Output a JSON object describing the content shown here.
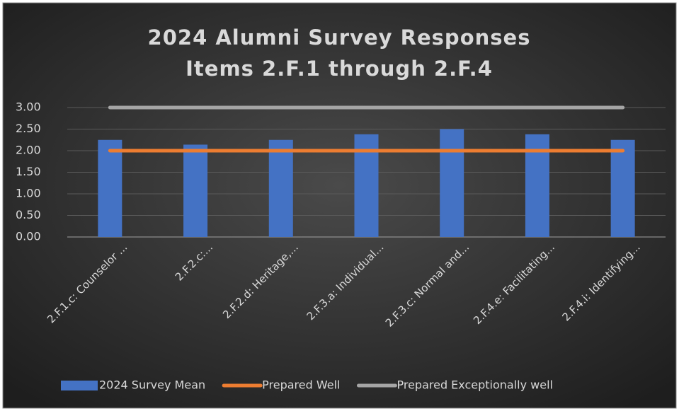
{
  "chart_data": {
    "type": "bar",
    "title": [
      "2024 Alumni Survey Responses",
      "Items 2.F.1 through 2.F.4"
    ],
    "categories": [
      "2.F.1.c: Counselor ...",
      "2.F.2.c:...",
      "2.F.2.d: Heritage,...",
      "2.F.3.a: Individual...",
      "2.F.3.c: Normal and...",
      "2.F.4.e: Facilitating...",
      "2.F.4.i: Identifying..."
    ],
    "series": [
      {
        "name": "2024 Survey Mean",
        "type": "bar",
        "color": "#4472c4",
        "values": [
          2.25,
          2.14,
          2.25,
          2.38,
          2.5,
          2.38,
          2.25
        ]
      },
      {
        "name": "Prepared Well",
        "type": "line",
        "color": "#ed7d31",
        "values": [
          2,
          2,
          2,
          2,
          2,
          2,
          2
        ]
      },
      {
        "name": "Prepared Exceptionally well",
        "type": "line",
        "color": "#a5a5a5",
        "values": [
          3,
          3,
          3,
          3,
          3,
          3,
          3
        ]
      }
    ],
    "ylim": [
      0,
      3
    ],
    "yticks": [
      {
        "value": 0,
        "label": "0.00"
      },
      {
        "value": 0.5,
        "label": "0.50"
      },
      {
        "value": 1,
        "label": "1.00"
      },
      {
        "value": 1.5,
        "label": "1.50"
      },
      {
        "value": 2,
        "label": "2.00"
      },
      {
        "value": 2.5,
        "label": "2.50"
      },
      {
        "value": 3,
        "label": "3.00"
      }
    ],
    "grid": true,
    "legend": "bottom"
  }
}
